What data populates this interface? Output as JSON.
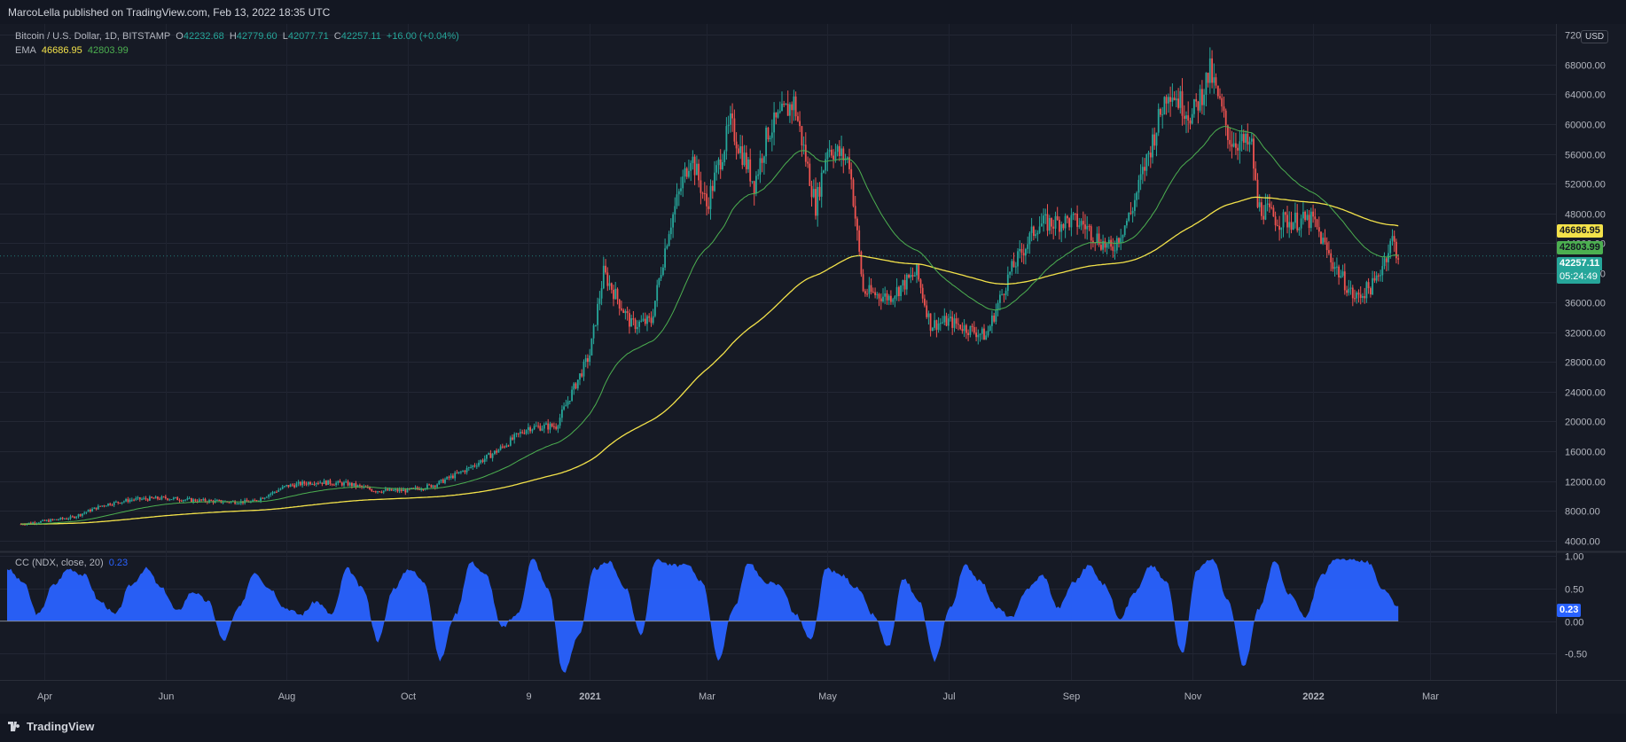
{
  "header": {
    "publisher_line": "MarcoLella published on TradingView.com, Feb 13, 2022 18:35 UTC"
  },
  "footer": {
    "brand": "TradingView"
  },
  "chart_data": [
    {
      "type": "candlestick",
      "title": "Bitcoin / U.S. Dollar, 1D, BITSTAMP",
      "ohlc_legend": {
        "o_label": "O",
        "o": "42232.68",
        "h_label": "H",
        "h": "42779.60",
        "l_label": "L",
        "l": "42077.71",
        "c_label": "C",
        "c": "42257.11",
        "change": "+16.00 (+0.04%)"
      },
      "currency": "USD",
      "ylim": [
        3000,
        73000
      ],
      "y_scale": "linear",
      "y_ticks": [
        "72000.00",
        "68000.00",
        "64000.00",
        "60000.00",
        "56000.00",
        "52000.00",
        "48000.00",
        "44000.00",
        "40000.00",
        "36000.00",
        "32000.00",
        "28000.00",
        "24000.00",
        "20000.00",
        "16000.00",
        "12000.00",
        "8000.00",
        "4000.00"
      ],
      "x_ticks": [
        "Apr",
        "Jun",
        "Aug",
        "Oct",
        "9",
        "2021",
        "Mar",
        "May",
        "Jul",
        "Sep",
        "Nov",
        "2022",
        "Mar"
      ],
      "grid": true,
      "price_series_approx": {
        "x": [
          "2020-03-20",
          "2020-04-01",
          "2020-04-15",
          "2020-05-01",
          "2020-05-15",
          "2020-06-01",
          "2020-06-15",
          "2020-07-01",
          "2020-07-15",
          "2020-08-01",
          "2020-08-15",
          "2020-09-01",
          "2020-09-15",
          "2020-10-01",
          "2020-10-15",
          "2020-11-01",
          "2020-11-15",
          "2020-12-01",
          "2020-12-15",
          "2021-01-01",
          "2021-01-08",
          "2021-01-15",
          "2021-01-22",
          "2021-02-01",
          "2021-02-10",
          "2021-02-21",
          "2021-03-01",
          "2021-03-13",
          "2021-03-25",
          "2021-04-01",
          "2021-04-14",
          "2021-04-25",
          "2021-05-01",
          "2021-05-12",
          "2021-05-19",
          "2021-06-01",
          "2021-06-15",
          "2021-06-22",
          "2021-07-01",
          "2021-07-20",
          "2021-08-01",
          "2021-08-15",
          "2021-09-01",
          "2021-09-07",
          "2021-09-21",
          "2021-10-01",
          "2021-10-20",
          "2021-11-01",
          "2021-11-10",
          "2021-11-20",
          "2021-12-01",
          "2021-12-04",
          "2021-12-15",
          "2022-01-01",
          "2022-01-10",
          "2022-01-22",
          "2022-02-01",
          "2022-02-10",
          "2022-02-13"
        ],
        "close": [
          6200,
          6600,
          7100,
          8800,
          9500,
          9700,
          9400,
          9200,
          9200,
          11300,
          11900,
          11600,
          10700,
          10700,
          11500,
          13700,
          16000,
          19200,
          19400,
          29000,
          40000,
          36500,
          33000,
          33500,
          46000,
          56000,
          49000,
          60000,
          52000,
          59000,
          63000,
          49000,
          57000,
          55000,
          37500,
          36700,
          40000,
          33000,
          33500,
          31500,
          40000,
          46500,
          47000,
          46500,
          43000,
          48000,
          65000,
          61000,
          67000,
          58000,
          57000,
          49000,
          47000,
          47000,
          41800,
          36500,
          38500,
          44500,
          42257
        ]
      },
      "indicators": [
        {
          "name": "EMA",
          "values": [
            "46686.95",
            "42803.99"
          ],
          "colors": [
            "#f3e24a",
            "#4caf50"
          ]
        }
      ],
      "price_labels": [
        "46686.95",
        "42803.99",
        "42257.11",
        "05:24:49"
      ]
    },
    {
      "type": "area",
      "title": "CC (NDX, close, 20)",
      "current_value": "0.23",
      "ylim": [
        -0.9,
        1.05
      ],
      "y_ticks": [
        "1.00",
        "0.50",
        "0.00",
        "-0.50"
      ],
      "color": "#2962ff",
      "series": [
        {
          "values": [
            0.8,
            0.6,
            0.1,
            0.55,
            0.8,
            0.7,
            0.3,
            0.1,
            0.55,
            0.8,
            0.5,
            0.15,
            0.45,
            0.3,
            -0.3,
            0.2,
            0.75,
            0.5,
            0.2,
            0.1,
            0.3,
            0.1,
            0.8,
            0.5,
            -0.3,
            0.5,
            0.8,
            0.6,
            -0.6,
            0.1,
            0.9,
            0.7,
            -0.1,
            0.1,
            0.95,
            0.5,
            -0.8,
            -0.2,
            0.8,
            0.9,
            0.5,
            -0.2,
            0.95,
            0.85,
            0.85,
            0.6,
            -0.6,
            0.2,
            0.9,
            0.6,
            0.55,
            0.1,
            -0.3,
            0.8,
            0.7,
            0.5,
            0.1,
            -0.4,
            0.65,
            0.3,
            -0.6,
            0.2,
            0.85,
            0.6,
            0.2,
            0.05,
            0.5,
            0.7,
            0.2,
            0.6,
            0.85,
            0.55,
            0.05,
            0.45,
            0.85,
            0.6,
            -0.5,
            0.8,
            0.95,
            0.3,
            -0.7,
            0.2,
            0.9,
            0.4,
            0.05,
            0.7,
            0.95,
            0.95,
            0.9,
            0.5,
            0.23
          ]
        }
      ]
    }
  ]
}
